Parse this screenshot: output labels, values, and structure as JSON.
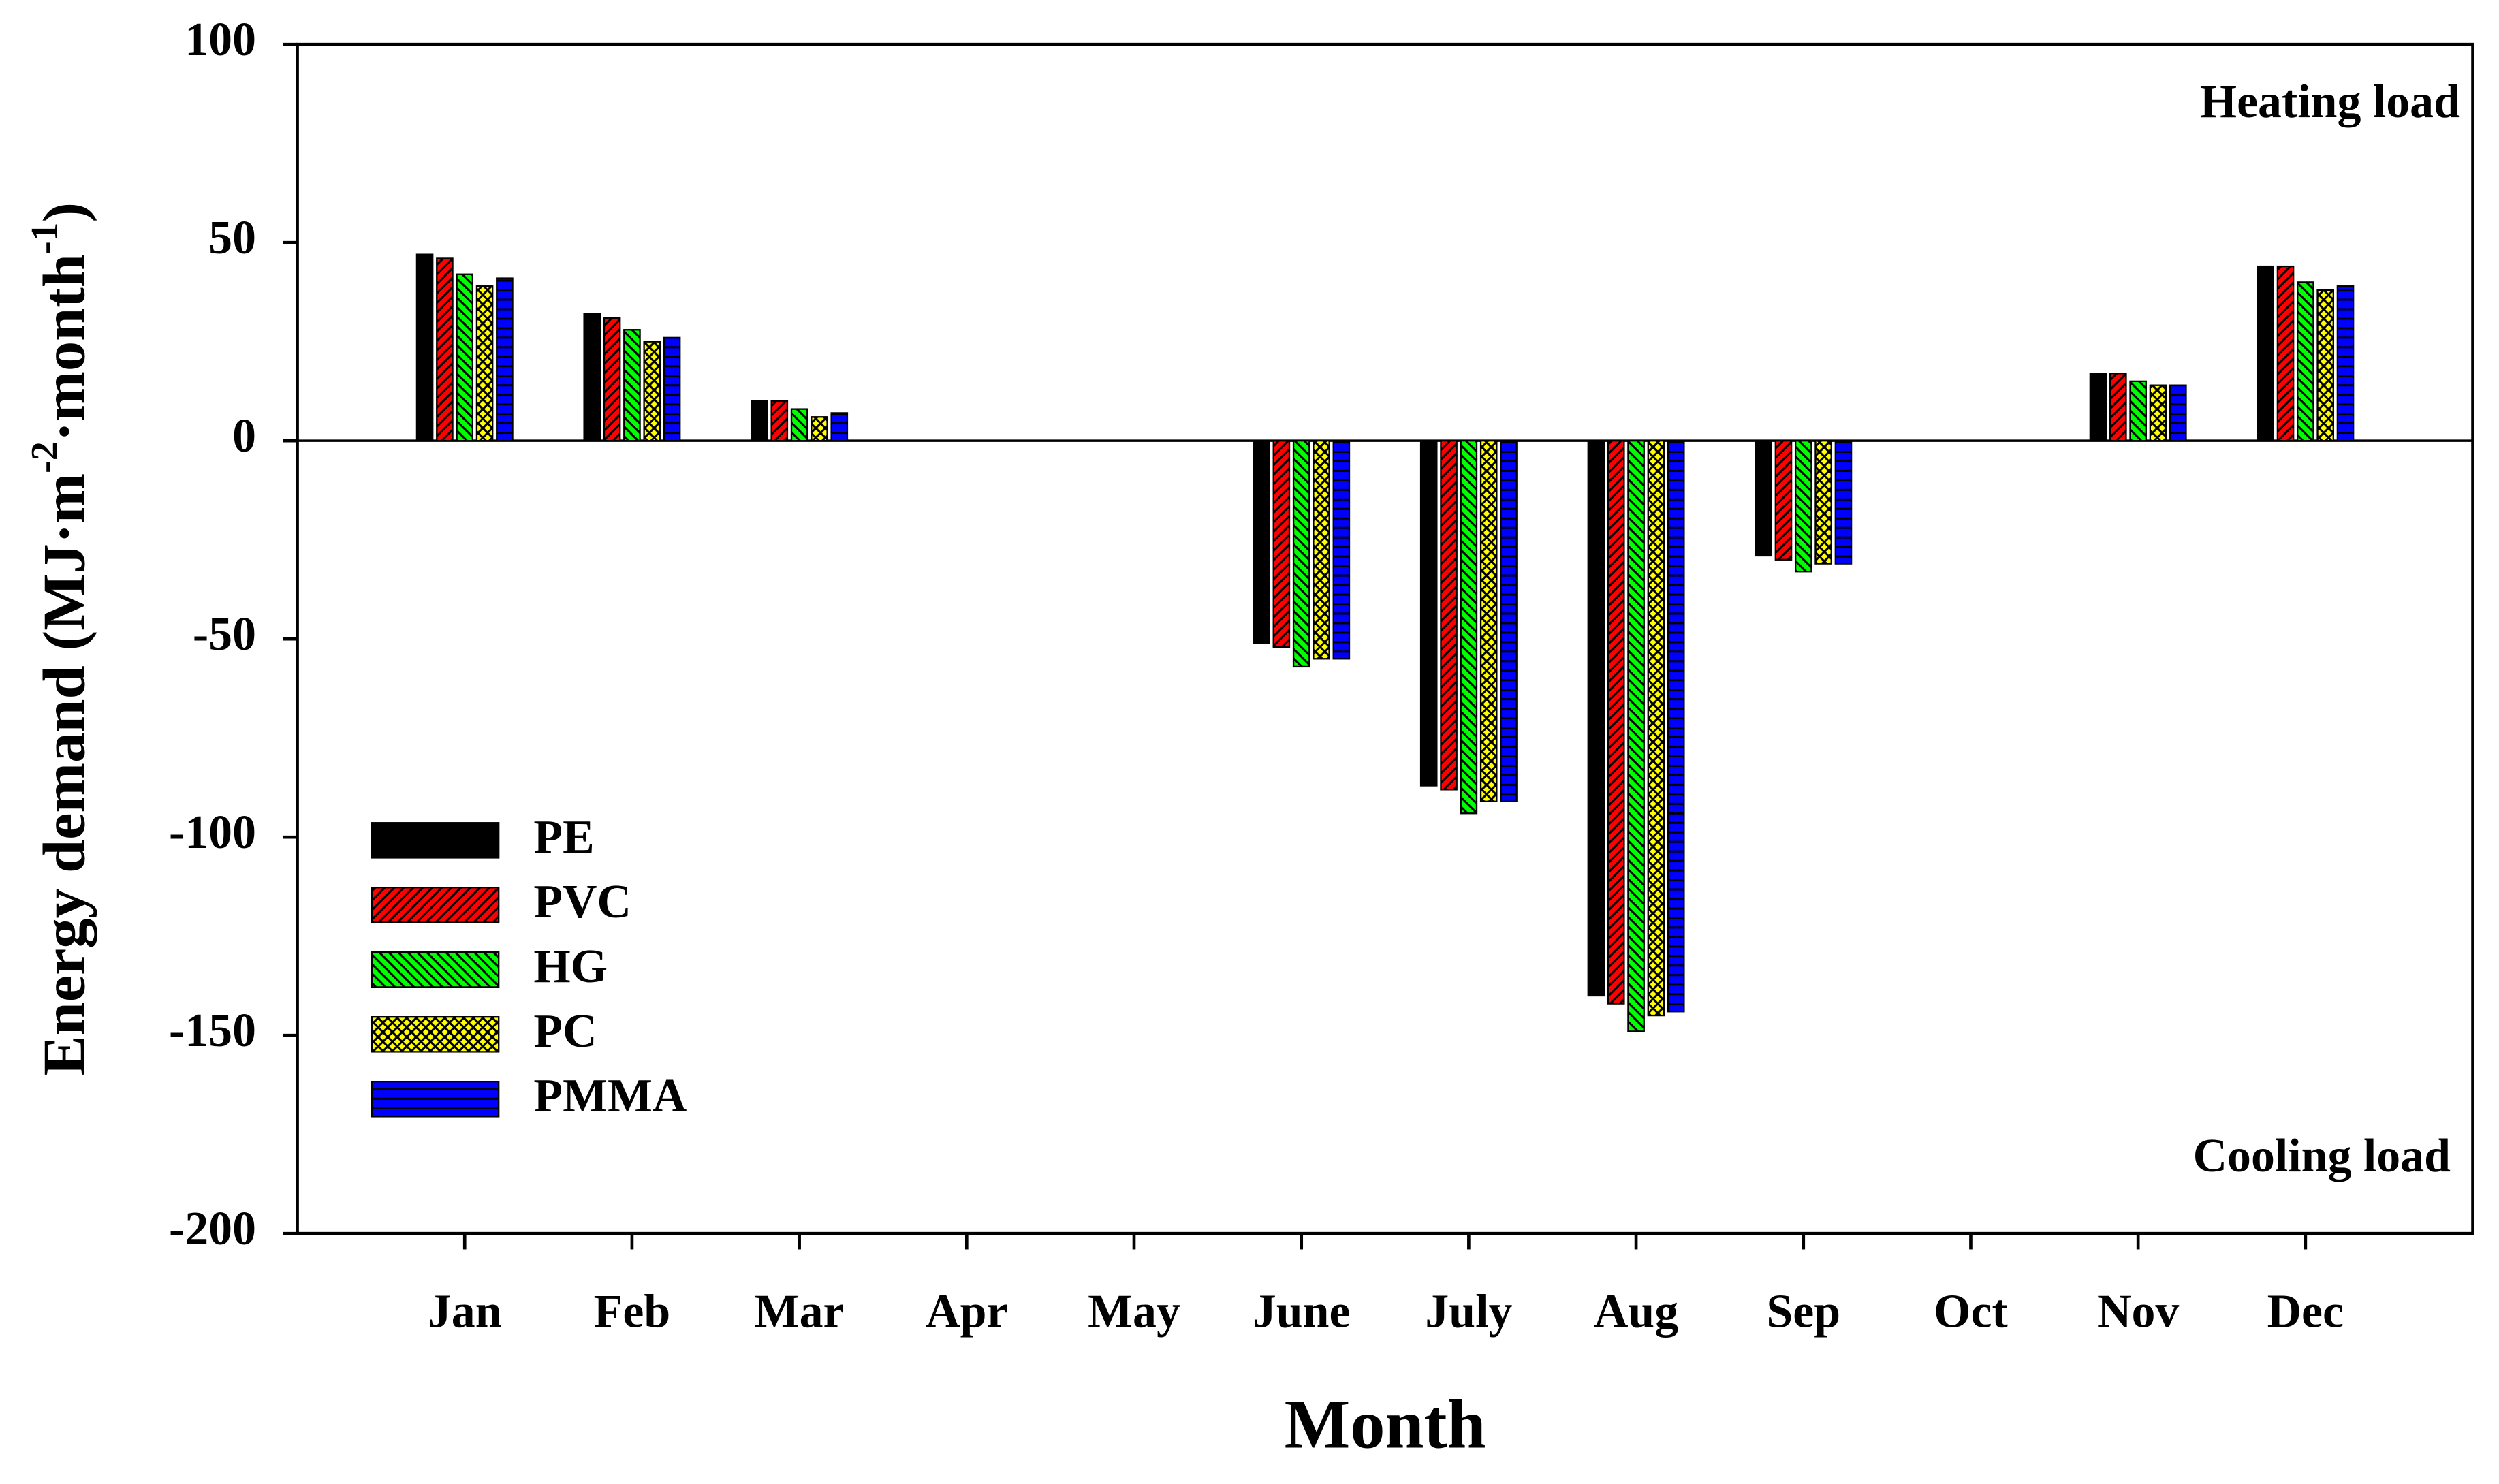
{
  "chart_data": {
    "type": "bar",
    "y_label": {
      "prefix": "Energy demand (MJ·m",
      "exp1": "-2",
      "middle": "·month",
      "exp2": "-1",
      "suffix": ")"
    },
    "x_label": "Month",
    "annotations": [
      "Heating load",
      "Cooling load"
    ],
    "categories": [
      "Jan",
      "Feb",
      "Mar",
      "Apr",
      "May",
      "June",
      "July",
      "Aug",
      "Sep",
      "Oct",
      "Nov",
      "Dec"
    ],
    "series": [
      {
        "name": "PE",
        "color": "#000000",
        "pattern": "solid",
        "values": [
          47,
          32,
          10,
          null,
          null,
          -51,
          -87,
          -140,
          -29,
          null,
          17,
          44
        ]
      },
      {
        "name": "PVC",
        "color": "#ff0000",
        "pattern": "diagonal",
        "values": [
          46,
          31,
          10,
          null,
          null,
          -52,
          -88,
          -142,
          -30,
          null,
          17,
          44
        ]
      },
      {
        "name": "HG",
        "color": "#00ff00",
        "pattern": "back-diagonal",
        "values": [
          42,
          28,
          8,
          null,
          null,
          -57,
          -94,
          -149,
          -33,
          null,
          15,
          40
        ]
      },
      {
        "name": "PC",
        "color": "#ffff00",
        "pattern": "crosshatch",
        "values": [
          39,
          25,
          6,
          null,
          null,
          -55,
          -91,
          -145,
          -31,
          null,
          14,
          38
        ]
      },
      {
        "name": "PMMA",
        "color": "#0000ff",
        "pattern": "horizontal",
        "values": [
          41,
          26,
          7,
          null,
          null,
          -55,
          -91,
          -144,
          -31,
          null,
          14,
          39
        ]
      }
    ],
    "ylim": [
      -200,
      100
    ],
    "yticks": [
      -200,
      -150,
      -100,
      -50,
      0,
      50,
      100
    ],
    "legend": "lower-left"
  }
}
